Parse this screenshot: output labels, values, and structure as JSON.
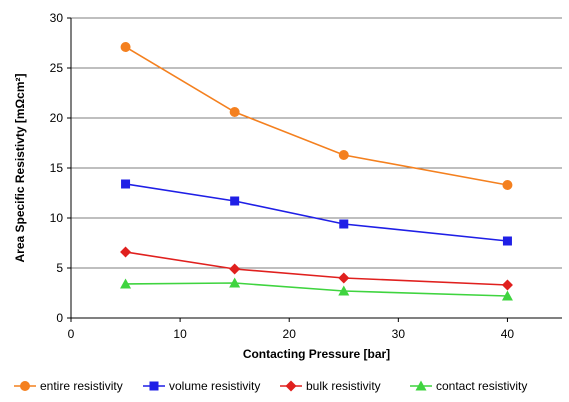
{
  "chart_data": {
    "type": "line",
    "title": "",
    "xlabel": "Contacting Pressure [bar]",
    "ylabel": "Area Specific Resistivty [mΩcm²]",
    "xlim": [
      0,
      45
    ],
    "ylim": [
      0,
      30
    ],
    "xticks": [
      0,
      10,
      20,
      30,
      40
    ],
    "yticks": [
      0,
      5,
      10,
      15,
      20,
      25,
      30
    ],
    "grid": "horizontal major gridlines",
    "legend_position": "bottom",
    "x": [
      5,
      15,
      25,
      40
    ],
    "series": [
      {
        "name": "entire resistivity",
        "marker": "circle",
        "color": "#f4801f",
        "values": [
          27.1,
          20.6,
          16.3,
          13.3
        ]
      },
      {
        "name": "volume resistivity",
        "marker": "square",
        "color": "#1f1fe6",
        "values": [
          13.4,
          11.7,
          9.4,
          7.7
        ]
      },
      {
        "name": "bulk resistivity",
        "marker": "diamond",
        "color": "#e0201e",
        "values": [
          6.6,
          4.9,
          4.0,
          3.3
        ]
      },
      {
        "name": "contact resistivity",
        "marker": "triangle",
        "color": "#3fd43f",
        "values": [
          3.4,
          3.5,
          2.7,
          2.2
        ]
      }
    ]
  }
}
